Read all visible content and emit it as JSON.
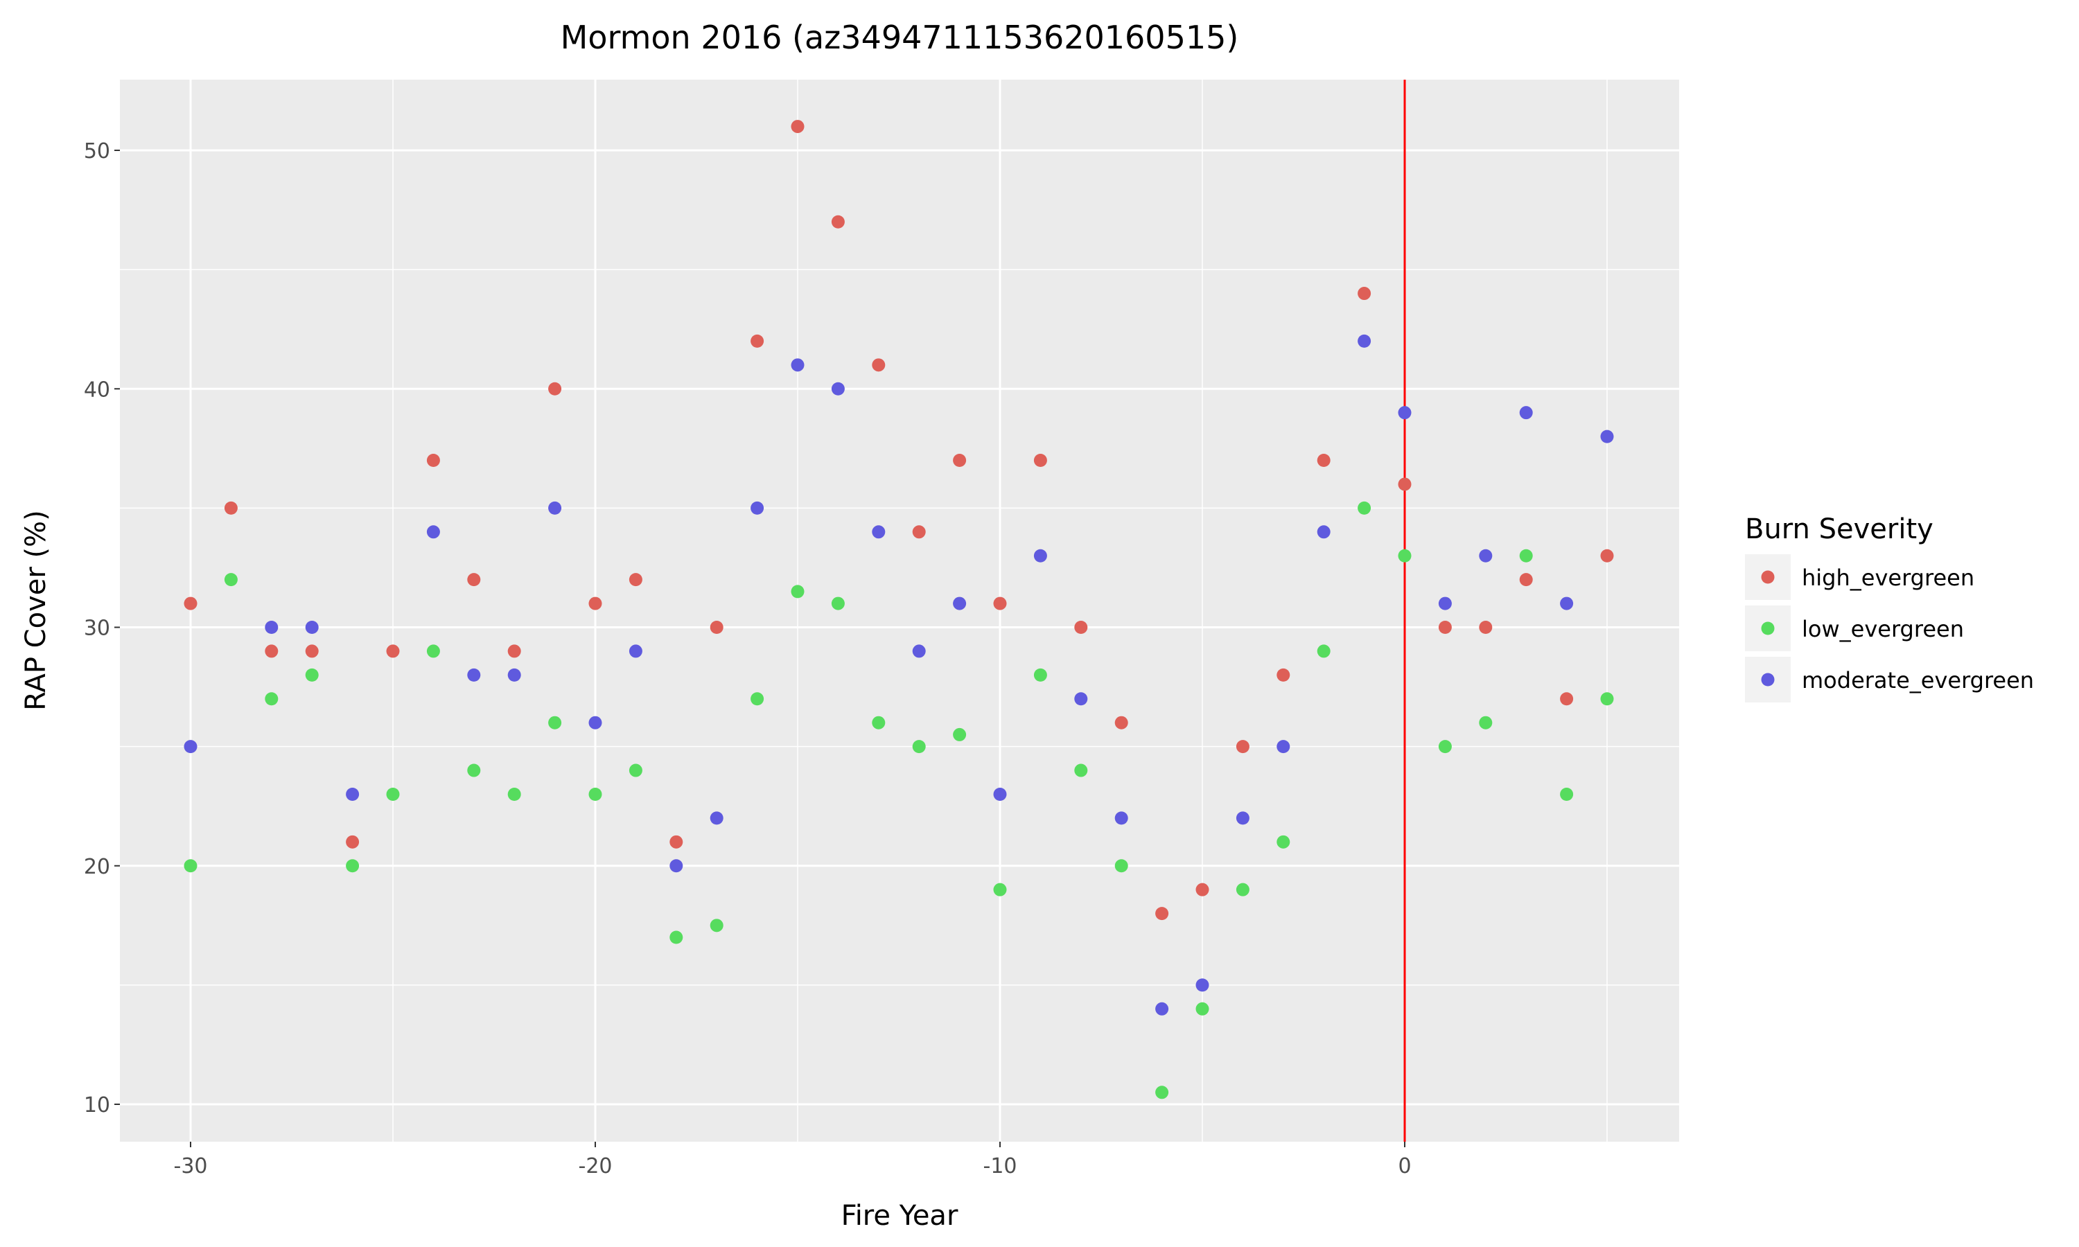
{
  "chart_data": {
    "type": "scatter",
    "title": "Mormon 2016 (az3494711153620160515)",
    "xlabel": "Fire Year",
    "ylabel": "RAP Cover (%)",
    "xlim": [
      -31.8,
      6.8
    ],
    "ylim": [
      8.5,
      53
    ],
    "xticks": [
      -30,
      -20,
      -10,
      0
    ],
    "yticks": [
      10,
      20,
      30,
      40,
      50
    ],
    "xtick_labels": [
      "-30",
      "-20",
      "-10",
      "0"
    ],
    "ytick_labels": [
      "10",
      "20",
      "30",
      "40",
      "50"
    ],
    "grid": true,
    "vline": {
      "x": 0,
      "color": "#ff0000"
    },
    "legend": {
      "title": "Burn Severity",
      "position": "right"
    },
    "series": [
      {
        "name": "high_evergreen",
        "color": "#de5f57",
        "x": [
          -30,
          -29,
          -28,
          -27,
          -26,
          -25,
          -24,
          -23,
          -22,
          -21,
          -20,
          -19,
          -18,
          -17,
          -16,
          -15,
          -14,
          -13,
          -12,
          -11,
          -10,
          -9,
          -8,
          -7,
          -6,
          -5,
          -4,
          -3,
          -2,
          -1,
          0,
          1,
          2,
          3,
          4,
          5
        ],
        "y": [
          31,
          35,
          29,
          29,
          21,
          29,
          37,
          32,
          29,
          40,
          31,
          32,
          21,
          30,
          42,
          51,
          47,
          41,
          34,
          37,
          31,
          37,
          30,
          26,
          18,
          19,
          25,
          28,
          37,
          44,
          36,
          30,
          30,
          32,
          27,
          33
        ]
      },
      {
        "name": "low_evergreen",
        "color": "#56dc5e",
        "x": [
          -30,
          -29,
          -28,
          -27,
          -26,
          -25,
          -24,
          -23,
          -22,
          -21,
          -20,
          -19,
          -18,
          -17,
          -16,
          -15,
          -14,
          -13,
          -12,
          -11,
          -10,
          -9,
          -8,
          -7,
          -6,
          -5,
          -4,
          -3,
          -2,
          -1,
          0,
          1,
          2,
          3,
          4,
          5
        ],
        "y": [
          20,
          32,
          27,
          28,
          20,
          23,
          29,
          24,
          23,
          26,
          23,
          24,
          17,
          17.5,
          27,
          31.5,
          31,
          26,
          25,
          25.5,
          19,
          28,
          24,
          20,
          10.5,
          14,
          19,
          21,
          29,
          35,
          33,
          25,
          26,
          33,
          23,
          27
        ]
      },
      {
        "name": "moderate_evergreen",
        "color": "#5f5ade",
        "x": [
          -30,
          -28,
          -27,
          -26,
          -24,
          -23,
          -22,
          -21,
          -20,
          -19,
          -18,
          -17,
          -16,
          -15,
          -14,
          -13,
          -12,
          -11,
          -10,
          -9,
          -8,
          -7,
          -6,
          -5,
          -4,
          -3,
          -2,
          -1,
          0,
          1,
          2,
          3,
          4,
          5
        ],
        "y": [
          25,
          30,
          30,
          23,
          34,
          28,
          28,
          35,
          26,
          29,
          20,
          22,
          35,
          41,
          40,
          34,
          29,
          31,
          23,
          33,
          27,
          22,
          14,
          15,
          22,
          25,
          34,
          42,
          39,
          31,
          33,
          39,
          31,
          38
        ]
      }
    ]
  }
}
